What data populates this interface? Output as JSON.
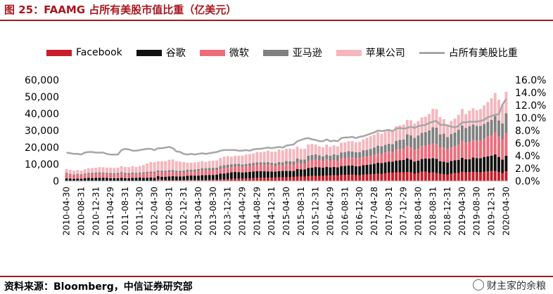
{
  "header": {
    "title": "图 25：FAAMG 占所有美股市值比重（亿美元）"
  },
  "footer": {
    "source": "资料来源：Bloomberg，中信证券研究部",
    "watermark": "财主家的余粮"
  },
  "colors": {
    "facebook": "#c81e2a",
    "google": "#111111",
    "microsoft": "#ee6b7a",
    "amazon": "#808080",
    "apple": "#f5b6bd",
    "share": "#a6a6a6"
  },
  "chart_data": {
    "type": "bar",
    "stacked": true,
    "x": [
      "2010-04-30",
      "2010-05-31",
      "2010-06-30",
      "2010-07-30",
      "2010-08-31",
      "2010-09-30",
      "2010-10-29",
      "2010-11-30",
      "2010-12-31",
      "2011-01-31",
      "2011-02-28",
      "2011-03-31",
      "2011-04-29",
      "2011-05-31",
      "2011-06-30",
      "2011-07-29",
      "2011-08-31",
      "2011-09-30",
      "2011-10-31",
      "2011-11-30",
      "2011-12-30",
      "2012-01-31",
      "2012-02-29",
      "2012-03-30",
      "2012-04-30",
      "2012-05-31",
      "2012-06-29",
      "2012-07-31",
      "2012-08-31",
      "2012-09-28",
      "2012-10-31",
      "2012-11-30",
      "2012-12-31",
      "2013-01-31",
      "2013-02-28",
      "2013-03-28",
      "2013-04-30",
      "2013-05-31",
      "2013-06-28",
      "2013-07-31",
      "2013-08-30",
      "2013-09-30",
      "2013-10-31",
      "2013-11-29",
      "2013-12-31",
      "2014-01-31",
      "2014-02-28",
      "2014-03-31",
      "2014-04-29",
      "2014-05-30",
      "2014-06-30",
      "2014-07-31",
      "2014-08-29",
      "2014-09-30",
      "2014-10-31",
      "2014-11-28",
      "2014-12-31",
      "2015-01-30",
      "2015-02-27",
      "2015-03-31",
      "2015-04-30",
      "2015-05-29",
      "2015-06-30",
      "2015-07-31",
      "2015-08-31",
      "2015-09-30",
      "2015-10-30",
      "2015-11-30",
      "2015-12-31",
      "2016-01-29",
      "2016-02-29",
      "2016-03-31",
      "2016-04-29",
      "2016-05-31",
      "2016-06-30",
      "2016-07-29",
      "2016-08-31",
      "2016-09-30",
      "2016-10-31",
      "2016-11-30",
      "2016-12-30",
      "2017-01-31",
      "2017-02-28",
      "2017-03-31",
      "2017-04-28",
      "2017-05-31",
      "2017-06-30",
      "2017-07-31",
      "2017-08-31",
      "2017-09-29",
      "2017-10-31",
      "2017-11-30",
      "2017-12-29",
      "2018-01-31",
      "2018-02-28",
      "2018-03-29",
      "2018-04-30",
      "2018-05-31",
      "2018-06-29",
      "2018-07-31",
      "2018-08-31",
      "2018-09-28",
      "2018-10-31",
      "2018-11-30",
      "2018-12-31",
      "2019-01-31",
      "2019-02-28",
      "2019-03-29",
      "2019-04-30",
      "2019-05-31",
      "2019-06-28",
      "2019-07-31",
      "2019-08-30",
      "2019-09-30",
      "2019-10-31",
      "2019-11-29",
      "2019-12-31",
      "2020-01-31",
      "2020-02-28",
      "2020-03-31",
      "2020-04-30"
    ],
    "x_tick_labels": [
      "2010-04-30",
      "2010-08-31",
      "2010-12-31",
      "2011-04-29",
      "2011-08-31",
      "2011-12-30",
      "2012-04-30",
      "2012-08-31",
      "2012-12-31",
      "2013-04-30",
      "2013-08-30",
      "2013-12-31",
      "2014-04-29",
      "2014-08-29",
      "2014-12-31",
      "2015-04-30",
      "2015-08-31",
      "2015-12-31",
      "2016-04-29",
      "2016-08-31",
      "2016-12-30",
      "2017-04-28",
      "2017-08-31",
      "2017-12-29",
      "2018-04-30",
      "2018-08-31",
      "2018-12-31",
      "2019-04-30",
      "2019-08-30",
      "2019-12-31",
      "2020-04-30"
    ],
    "y_left_ticks": [
      "0",
      "10,000",
      "20,000",
      "30,000",
      "40,000",
      "50,000",
      "60,000"
    ],
    "y_right_ticks": [
      "0.0%",
      "2.0%",
      "4.0%",
      "6.0%",
      "8.0%",
      "10.0%",
      "12.0%",
      "14.0%",
      "16.0%"
    ],
    "ylim_left": [
      0,
      60000
    ],
    "ylim_right": [
      0,
      16
    ],
    "legend_position": "top",
    "series": [
      {
        "name": "Facebook",
        "kind": "bar",
        "values": [
          0,
          0,
          0,
          0,
          0,
          0,
          0,
          0,
          0,
          0,
          0,
          0,
          0,
          0,
          0,
          0,
          0,
          0,
          0,
          0,
          0,
          0,
          0,
          0,
          0,
          1000,
          700,
          500,
          450,
          450,
          450,
          500,
          550,
          650,
          700,
          650,
          600,
          600,
          600,
          700,
          800,
          850,
          1000,
          1000,
          1100,
          1300,
          1400,
          1500,
          1400,
          1500,
          1600,
          1800,
          1900,
          1950,
          2000,
          2050,
          2050,
          2100,
          2200,
          2300,
          2300,
          2300,
          2400,
          2700,
          2600,
          2600,
          2900,
          3000,
          3000,
          3000,
          3100,
          3200,
          3300,
          3400,
          3300,
          3600,
          3600,
          3700,
          3800,
          3500,
          3400,
          3800,
          3900,
          4000,
          4100,
          4300,
          4200,
          4600,
          4900,
          4900,
          5200,
          5200,
          5200,
          5400,
          5200,
          4400,
          4800,
          5500,
          5600,
          5000,
          5100,
          4700,
          4300,
          4000,
          3800,
          4300,
          4700,
          4800,
          5500,
          5100,
          5400,
          5500,
          5300,
          5100,
          5500,
          5700,
          5900,
          5900,
          5300,
          4800,
          5800
        ]
      },
      {
        "name": "谷歌",
        "kind": "bar",
        "values": [
          1600,
          1500,
          1400,
          1500,
          1400,
          1700,
          1900,
          1800,
          1900,
          1950,
          2000,
          1900,
          1750,
          1700,
          1650,
          2000,
          1750,
          1650,
          1950,
          1950,
          2100,
          1900,
          2000,
          2100,
          1950,
          1900,
          1850,
          2100,
          2250,
          2450,
          2250,
          2200,
          2300,
          2500,
          2600,
          2600,
          2650,
          2900,
          2900,
          2950,
          2800,
          2900,
          3400,
          3500,
          3700,
          3900,
          4000,
          3800,
          3700,
          3800,
          3900,
          3900,
          4000,
          3900,
          3800,
          3700,
          3600,
          3500,
          3700,
          3700,
          3700,
          3700,
          3600,
          4500,
          4300,
          4300,
          4900,
          5000,
          5300,
          5200,
          4900,
          5200,
          4800,
          5000,
          4800,
          5300,
          5400,
          5500,
          5500,
          5300,
          5400,
          5600,
          5700,
          5800,
          6100,
          6600,
          6500,
          6500,
          6700,
          6600,
          7000,
          7200,
          7300,
          8100,
          7500,
          7200,
          7300,
          7600,
          7800,
          8300,
          8500,
          8500,
          7500,
          7500,
          7200,
          7600,
          7700,
          7800,
          8300,
          7800,
          7500,
          8500,
          8300,
          8500,
          8800,
          9000,
          9200,
          9900,
          9000,
          7900,
          9200
        ]
      },
      {
        "name": "微软",
        "kind": "bar",
        "values": [
          2600,
          2200,
          2000,
          2200,
          2000,
          2000,
          2200,
          2200,
          2300,
          2400,
          2300,
          2100,
          2100,
          2100,
          2200,
          2300,
          2200,
          2100,
          2200,
          2100,
          2200,
          2500,
          2600,
          2700,
          2700,
          2500,
          2600,
          2500,
          2600,
          2500,
          2400,
          2200,
          2200,
          2300,
          2300,
          2400,
          2700,
          2900,
          2900,
          2700,
          2800,
          2800,
          2900,
          3200,
          3100,
          3100,
          3100,
          3400,
          3300,
          3400,
          3400,
          3600,
          3700,
          3800,
          3900,
          3900,
          3800,
          3300,
          3600,
          3300,
          3900,
          3800,
          3600,
          3700,
          3500,
          3500,
          4300,
          4300,
          4400,
          4300,
          4000,
          4400,
          3900,
          4100,
          3900,
          4500,
          4500,
          4600,
          4600,
          4700,
          4800,
          5000,
          4900,
          5100,
          5300,
          5400,
          5300,
          5700,
          5800,
          5800,
          6400,
          6500,
          6600,
          7300,
          7200,
          7000,
          7100,
          7600,
          7600,
          8100,
          8600,
          8800,
          8200,
          8500,
          7800,
          8000,
          8300,
          9000,
          10000,
          9900,
          10300,
          10400,
          10300,
          10600,
          10800,
          11600,
          12000,
          13000,
          12100,
          11800,
          13500
        ]
      },
      {
        "name": "亚马逊",
        "kind": "bar",
        "values": [
          600,
          550,
          500,
          550,
          550,
          700,
          750,
          800,
          800,
          800,
          800,
          800,
          900,
          900,
          950,
          1000,
          950,
          1000,
          950,
          850,
          800,
          880,
          820,
          920,
          1050,
          950,
          1040,
          1050,
          1130,
          1160,
          1050,
          1140,
          1180,
          1210,
          1200,
          1170,
          1160,
          1230,
          1250,
          1370,
          1310,
          1420,
          1650,
          1800,
          1830,
          1640,
          1650,
          1550,
          1400,
          1440,
          1500,
          1440,
          1560,
          1520,
          1400,
          1560,
          1440,
          1640,
          1760,
          1740,
          1960,
          2000,
          2040,
          2500,
          2400,
          2400,
          2930,
          3100,
          3200,
          2800,
          2600,
          2800,
          3100,
          3400,
          3400,
          3600,
          3700,
          3900,
          3700,
          3600,
          3600,
          3900,
          4000,
          4200,
          4400,
          4700,
          4600,
          4700,
          4700,
          4600,
          5300,
          5500,
          5600,
          7000,
          7300,
          7000,
          7900,
          7900,
          8100,
          8700,
          9700,
          9700,
          7800,
          8200,
          7300,
          8000,
          8100,
          8800,
          9100,
          8700,
          9300,
          9200,
          8800,
          8600,
          8800,
          8800,
          9200,
          9900,
          9600,
          9700,
          11700
        ]
      },
      {
        "name": "苹果公司",
        "kind": "bar",
        "values": [
          2400,
          2400,
          2300,
          2300,
          2200,
          2600,
          2800,
          2900,
          2900,
          3100,
          3100,
          3200,
          3200,
          3100,
          3100,
          3600,
          3500,
          3500,
          3700,
          3500,
          3800,
          4200,
          5000,
          5600,
          5400,
          5400,
          5500,
          5700,
          6200,
          6300,
          5600,
          5500,
          5000,
          4200,
          4100,
          4200,
          4200,
          4200,
          3700,
          4200,
          4400,
          4300,
          4700,
          5000,
          5100,
          4500,
          4800,
          4800,
          5300,
          5600,
          5600,
          5700,
          6100,
          6000,
          6300,
          6800,
          6500,
          6900,
          7500,
          7200,
          7300,
          7500,
          7300,
          7000,
          6300,
          6300,
          6700,
          6600,
          5800,
          5400,
          5400,
          6000,
          5200,
          5400,
          5200,
          5700,
          5700,
          6000,
          6100,
          5800,
          6100,
          6400,
          7200,
          7500,
          7600,
          8000,
          7400,
          7800,
          8300,
          7900,
          8600,
          8700,
          8800,
          8500,
          8900,
          8500,
          8500,
          9200,
          9100,
          9700,
          11000,
          11000,
          10200,
          8500,
          7500,
          7800,
          8200,
          8900,
          9900,
          8300,
          9300,
          9600,
          9300,
          10000,
          11000,
          11800,
          12900,
          13600,
          12300,
          11000,
          12800
        ]
      },
      {
        "name": "占所有美股比重",
        "kind": "line",
        "axis": "right",
        "values": [
          4.5,
          4.4,
          4.3,
          4.3,
          4.2,
          4.5,
          4.6,
          4.6,
          4.5,
          4.5,
          4.5,
          4.3,
          4.2,
          4.2,
          4.2,
          4.9,
          5.1,
          5.0,
          4.8,
          4.8,
          4.9,
          5.0,
          5.1,
          5.1,
          4.9,
          5.2,
          5.2,
          5.3,
          5.4,
          5.2,
          4.7,
          4.6,
          4.3,
          4.2,
          4.3,
          4.2,
          4.3,
          4.4,
          4.3,
          4.4,
          4.5,
          4.6,
          4.8,
          4.9,
          4.9,
          4.9,
          4.9,
          4.8,
          4.8,
          4.9,
          4.8,
          5.0,
          5.1,
          5.1,
          5.2,
          5.3,
          5.2,
          5.3,
          5.4,
          5.3,
          5.6,
          5.7,
          5.8,
          6.3,
          6.5,
          6.7,
          6.8,
          6.6,
          6.5,
          6.3,
          6.3,
          6.6,
          6.3,
          6.4,
          6.3,
          6.8,
          6.9,
          6.9,
          7.0,
          6.8,
          7.0,
          7.1,
          7.3,
          7.5,
          7.7,
          8.0,
          7.9,
          8.0,
          8.1,
          7.9,
          8.3,
          8.4,
          8.3,
          8.4,
          8.6,
          8.4,
          8.7,
          8.8,
          8.9,
          9.2,
          9.4,
          9.5,
          8.9,
          8.9,
          8.8,
          8.6,
          8.5,
          8.7,
          9.3,
          9.3,
          9.4,
          9.4,
          9.4,
          9.5,
          9.7,
          10.1,
          10.3,
          10.5,
          10.6,
          12.1,
          13.0
        ]
      }
    ]
  }
}
